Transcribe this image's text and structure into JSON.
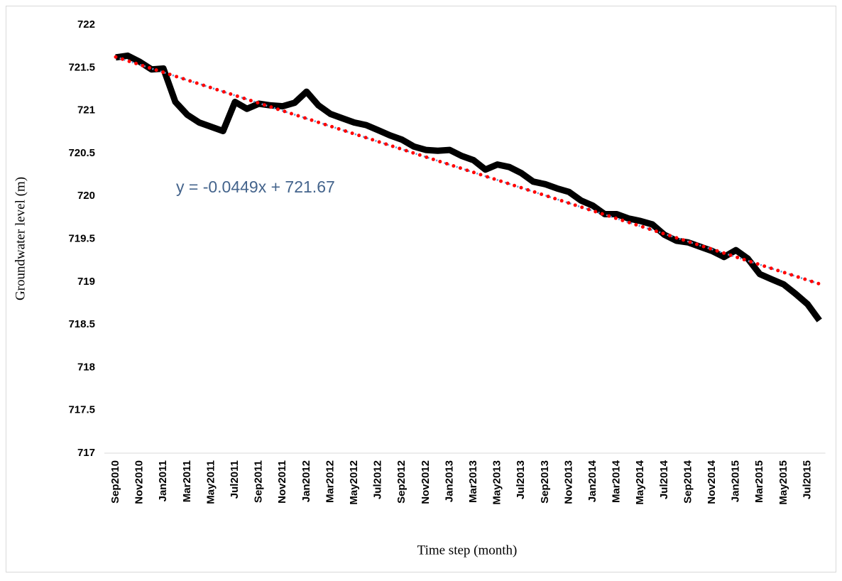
{
  "chart_data": {
    "type": "line",
    "x_label": "Time step (month)",
    "y_label": "Groundwater level (m)",
    "categories": [
      "Sep2010",
      null,
      "Nov2010",
      null,
      "Jan2011",
      null,
      "Mar2011",
      null,
      "May2011",
      null,
      "Jul2011",
      null,
      "Sep2011",
      null,
      "Nov2011",
      null,
      "Jan2012",
      null,
      "Mar2012",
      null,
      "May2012",
      null,
      "Jul2012",
      null,
      "Sep2012",
      null,
      "Nov2012",
      null,
      "Jan2013",
      null,
      "Mar2013",
      null,
      "May2013",
      null,
      "Jul2013",
      null,
      "Sep2013",
      null,
      "Nov2013",
      null,
      "Jan2014",
      null,
      "Mar2014",
      null,
      "May2014",
      null,
      "Jul2014",
      null,
      "Sep2014",
      null,
      "Nov2014",
      null,
      "Jan2015",
      null,
      "Mar2015",
      null,
      "May2015",
      null,
      "Jul2015",
      null
    ],
    "values": [
      721.62,
      721.64,
      721.57,
      721.48,
      721.49,
      721.1,
      720.95,
      720.86,
      720.81,
      720.76,
      721.1,
      721.02,
      721.08,
      721.06,
      721.05,
      721.09,
      721.22,
      721.06,
      720.96,
      720.91,
      720.86,
      720.83,
      720.77,
      720.71,
      720.66,
      720.58,
      720.54,
      720.53,
      720.54,
      720.47,
      720.42,
      720.31,
      720.37,
      720.34,
      720.27,
      720.17,
      720.14,
      720.09,
      720.05,
      719.95,
      719.89,
      719.79,
      719.79,
      719.74,
      719.71,
      719.67,
      719.55,
      719.48,
      719.46,
      719.41,
      719.36,
      719.29,
      719.37,
      719.27,
      719.09,
      719.03,
      718.97,
      718.86,
      718.74,
      718.55
    ],
    "color": "#000000",
    "trendline": {
      "slope": -0.0449,
      "intercept": 721.67,
      "label": "y = -0.0449x + 721.67",
      "color": "#ff0000"
    },
    "ylim": [
      717,
      722
    ],
    "yticks": [
      717,
      717.5,
      718,
      718.5,
      719,
      719.5,
      720,
      720.5,
      721,
      721.5,
      722
    ]
  }
}
